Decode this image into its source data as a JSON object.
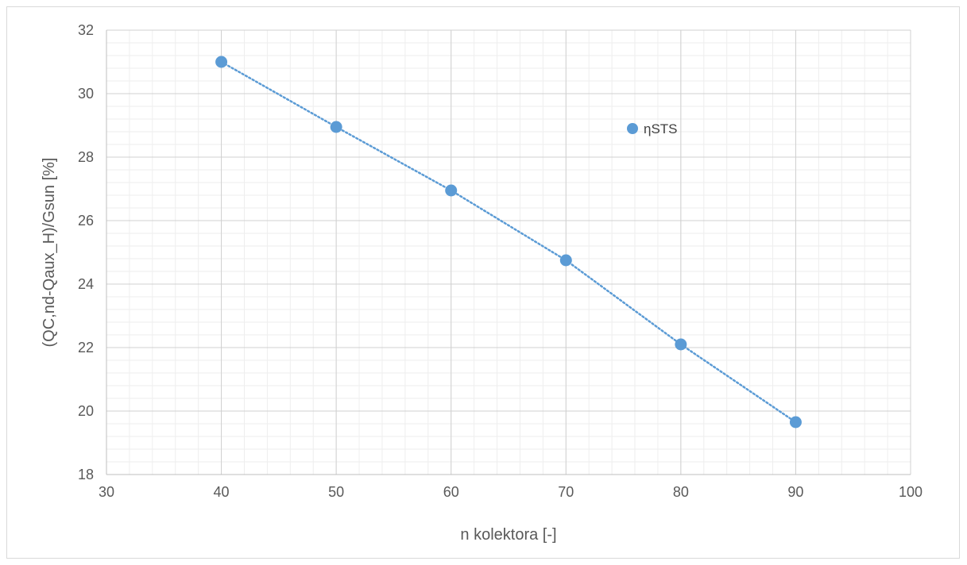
{
  "chart_data": {
    "type": "scatter",
    "title": "",
    "xlabel": "n kolektora [-]",
    "ylabel": "(QC,nd-Qaux_H)/Gsun  [%]",
    "xlim": [
      30,
      100
    ],
    "ylim": [
      18,
      32
    ],
    "x_ticks": [
      30,
      40,
      50,
      60,
      70,
      80,
      90,
      100
    ],
    "y_ticks": [
      18,
      20,
      22,
      24,
      26,
      28,
      30,
      32
    ],
    "grid": true,
    "minor_grid": true,
    "legend_position": "inside-top-right",
    "trendline": "linear-dotted",
    "series": [
      {
        "name": "ηSTS",
        "color": "#5b9bd5",
        "x": [
          40,
          50,
          60,
          70,
          80,
          90
        ],
        "y": [
          31.0,
          28.95,
          26.95,
          24.75,
          22.1,
          19.65
        ]
      }
    ]
  }
}
